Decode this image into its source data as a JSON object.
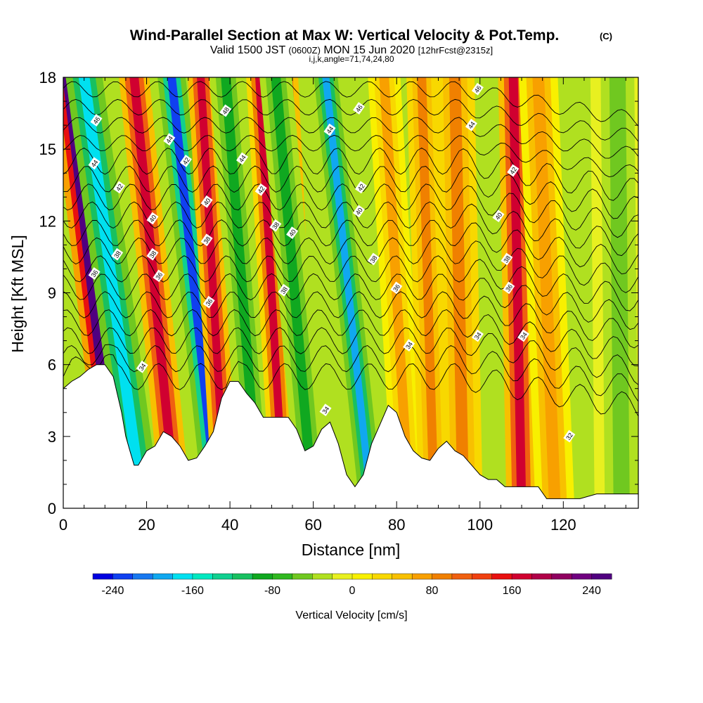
{
  "title": "Wind-Parallel Section at Max W: Vertical Velocity & Pot.Temp.",
  "copyright_mark": "(C)",
  "subtitle": {
    "prefix": "Valid 1500 JST",
    "utc": "(0600Z)",
    "date": "MON 15 Jun 2020",
    "forecast": "[12hrFcst@2315z]"
  },
  "grid_note": "i,j,k,angle=71,74,24,80",
  "chart_data": {
    "type": "heatmap",
    "xlabel": "Distance [nm]",
    "ylabel": "Height [Kft MSL]",
    "xlim": [
      0,
      138
    ],
    "ylim": [
      0,
      18
    ],
    "x_ticks": [
      0,
      20,
      40,
      60,
      80,
      100,
      120
    ],
    "y_ticks": [
      0,
      3,
      6,
      9,
      12,
      15,
      18
    ],
    "colorbar": {
      "label": "Vertical Velocity [cm/s]",
      "ticks": [
        -240,
        -160,
        -80,
        0,
        80,
        160,
        240
      ],
      "range": [
        -260,
        260
      ],
      "colors": [
        "#0000e0",
        "#1040f0",
        "#1878f0",
        "#10a8f0",
        "#00e0f0",
        "#00e8c0",
        "#10d090",
        "#18c060",
        "#10a820",
        "#30b820",
        "#70c820",
        "#b0e020",
        "#e8f020",
        "#f8f000",
        "#f8d800",
        "#f8c000",
        "#f8a000",
        "#f08000",
        "#f06010",
        "#f04010",
        "#e81010",
        "#d00030",
        "#b00048",
        "#900060",
        "#700080",
        "#500080"
      ]
    },
    "terrain_kft": [
      [
        0,
        5
      ],
      [
        2,
        5.3
      ],
      [
        4,
        5.5
      ],
      [
        6,
        5.8
      ],
      [
        8,
        6
      ],
      [
        10,
        6
      ],
      [
        12,
        5.5
      ],
      [
        14,
        4
      ],
      [
        15,
        3
      ],
      [
        16,
        2.4
      ],
      [
        17,
        1.8
      ],
      [
        18,
        1.8
      ],
      [
        20,
        2.4
      ],
      [
        22,
        2.6
      ],
      [
        24,
        3.2
      ],
      [
        26,
        3
      ],
      [
        28,
        2.6
      ],
      [
        30,
        2
      ],
      [
        32,
        2.1
      ],
      [
        34,
        2.6
      ],
      [
        36,
        3.2
      ],
      [
        38,
        4.6
      ],
      [
        40,
        5.3
      ],
      [
        42,
        5.3
      ],
      [
        44,
        4.8
      ],
      [
        46,
        4.4
      ],
      [
        48,
        3.8
      ],
      [
        50,
        3.8
      ],
      [
        54,
        3.8
      ],
      [
        56,
        3.3
      ],
      [
        58,
        2.4
      ],
      [
        60,
        2.6
      ],
      [
        62,
        3.3
      ],
      [
        64,
        3.6
      ],
      [
        66,
        2.7
      ],
      [
        68,
        1.4
      ],
      [
        70,
        0.9
      ],
      [
        72,
        1.4
      ],
      [
        74,
        2.7
      ],
      [
        76,
        3.5
      ],
      [
        78,
        4.3
      ],
      [
        80,
        4
      ],
      [
        82,
        3
      ],
      [
        84,
        2.4
      ],
      [
        86,
        2.1
      ],
      [
        88,
        2
      ],
      [
        90,
        2.5
      ],
      [
        92,
        2.8
      ],
      [
        94,
        2.4
      ],
      [
        96,
        2.2
      ],
      [
        98,
        1.8
      ],
      [
        100,
        1.4
      ],
      [
        102,
        1.2
      ],
      [
        104,
        1.2
      ],
      [
        106,
        0.9
      ],
      [
        108,
        0.9
      ],
      [
        110,
        0.9
      ],
      [
        112,
        0.9
      ],
      [
        114,
        0.9
      ],
      [
        116,
        0.4
      ],
      [
        118,
        0.4
      ],
      [
        120,
        0.4
      ],
      [
        124,
        0.4
      ],
      [
        128,
        0.6
      ],
      [
        132,
        0.6
      ],
      [
        138,
        0.6
      ]
    ],
    "velocity_bands": [
      {
        "x0": 13,
        "tilt": 12,
        "w": 250,
        "width": 1.5
      },
      {
        "x0": 19,
        "tilt": 14,
        "w": -170,
        "width": 1.7
      },
      {
        "x0": 27,
        "tilt": 10,
        "w": 170,
        "width": 1.4
      },
      {
        "x0": 37,
        "tilt": 11,
        "w": -230,
        "width": 1.3
      },
      {
        "x0": 39,
        "tilt": 6,
        "w": 170,
        "width": 1.2
      },
      {
        "x0": 47,
        "tilt": 8,
        "w": -100,
        "width": 1.5
      },
      {
        "x0": 53,
        "tilt": 6,
        "w": 160,
        "width": 1.2
      },
      {
        "x0": 58,
        "tilt": 5,
        "w": 180,
        "width": 1.3
      },
      {
        "x0": 60,
        "tilt": 9,
        "w": -90,
        "width": 1.5
      },
      {
        "x0": 74,
        "tilt": 11,
        "w": -200,
        "width": 1.1
      },
      {
        "x0": 83,
        "tilt": 6,
        "w": 60,
        "width": 1.5
      },
      {
        "x0": 89,
        "tilt": 3,
        "w": 90,
        "width": 1.4
      },
      {
        "x0": 96,
        "tilt": 2,
        "w": 80,
        "width": 1.8
      },
      {
        "x0": 110,
        "tilt": 2,
        "w": 170,
        "width": 1.4
      },
      {
        "x0": 118,
        "tilt": 4,
        "w": 70,
        "width": 1.8
      },
      {
        "x0": 134,
        "tilt": 1,
        "w": -60,
        "width": 2.5
      }
    ],
    "isentrope_labels": [
      {
        "x": 8,
        "y": 16.2,
        "text": "46"
      },
      {
        "x": 7.5,
        "y": 14.4,
        "text": "44"
      },
      {
        "x": 13.5,
        "y": 13.4,
        "text": "42"
      },
      {
        "x": 13,
        "y": 10.6,
        "text": "38"
      },
      {
        "x": 7.5,
        "y": 9.8,
        "text": "36"
      },
      {
        "x": 25.5,
        "y": 15.4,
        "text": "44"
      },
      {
        "x": 29.5,
        "y": 14.5,
        "text": "42"
      },
      {
        "x": 21.5,
        "y": 12.1,
        "text": "40"
      },
      {
        "x": 21.5,
        "y": 10.6,
        "text": "38"
      },
      {
        "x": 23,
        "y": 9.7,
        "text": "36"
      },
      {
        "x": 19,
        "y": 5.9,
        "text": "34"
      },
      {
        "x": 39,
        "y": 16.6,
        "text": "48"
      },
      {
        "x": 43,
        "y": 14.6,
        "text": "44"
      },
      {
        "x": 34.5,
        "y": 12.8,
        "text": "40"
      },
      {
        "x": 34.5,
        "y": 11.2,
        "text": "38"
      },
      {
        "x": 35,
        "y": 8.6,
        "text": "36"
      },
      {
        "x": 47.5,
        "y": 13.3,
        "text": "42"
      },
      {
        "x": 51,
        "y": 11.8,
        "text": "38"
      },
      {
        "x": 55,
        "y": 11.5,
        "text": "40"
      },
      {
        "x": 53,
        "y": 9.1,
        "text": "38"
      },
      {
        "x": 64,
        "y": 15.8,
        "text": "44"
      },
      {
        "x": 71,
        "y": 16.7,
        "text": "46"
      },
      {
        "x": 71.5,
        "y": 13.4,
        "text": "42"
      },
      {
        "x": 71,
        "y": 12.4,
        "text": "40"
      },
      {
        "x": 74.5,
        "y": 10.4,
        "text": "38"
      },
      {
        "x": 80,
        "y": 9.2,
        "text": "36"
      },
      {
        "x": 83,
        "y": 6.8,
        "text": "34"
      },
      {
        "x": 63,
        "y": 4.1,
        "text": "34"
      },
      {
        "x": 99.5,
        "y": 17.5,
        "text": "46"
      },
      {
        "x": 98,
        "y": 16,
        "text": "44"
      },
      {
        "x": 108,
        "y": 14.1,
        "text": "42"
      },
      {
        "x": 104.5,
        "y": 12.2,
        "text": "40"
      },
      {
        "x": 106.5,
        "y": 10.4,
        "text": "38"
      },
      {
        "x": 107,
        "y": 9.2,
        "text": "36"
      },
      {
        "x": 99.5,
        "y": 7.2,
        "text": "34"
      },
      {
        "x": 110.5,
        "y": 7.2,
        "text": "34"
      },
      {
        "x": 121.5,
        "y": 3,
        "text": "32"
      }
    ]
  }
}
